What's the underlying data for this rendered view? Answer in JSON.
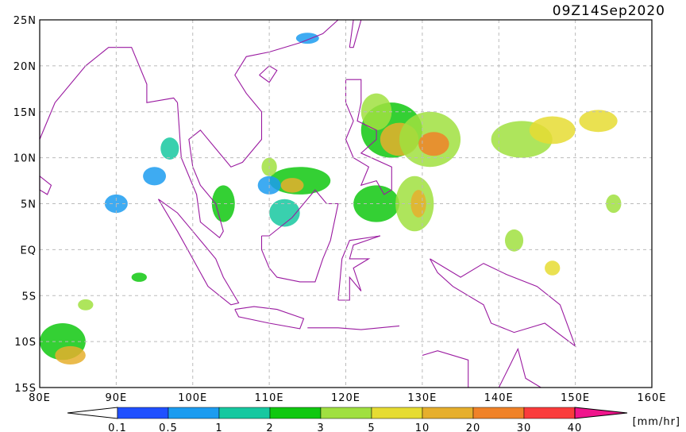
{
  "map": {
    "timestamp": "09Z14Sep2020",
    "lat_labels": [
      "25N",
      "20N",
      "15N",
      "10N",
      "5N",
      "EQ",
      "5S",
      "10S",
      "15S"
    ],
    "lon_labels": [
      "80E",
      "90E",
      "100E",
      "110E",
      "120E",
      "130E",
      "140E",
      "150E",
      "160E"
    ]
  },
  "colorbar": {
    "labels": [
      "0.1",
      "0.5",
      "1",
      "2",
      "3",
      "5",
      "10",
      "20",
      "30",
      "40"
    ],
    "unit": "[mm/hr]"
  }
}
